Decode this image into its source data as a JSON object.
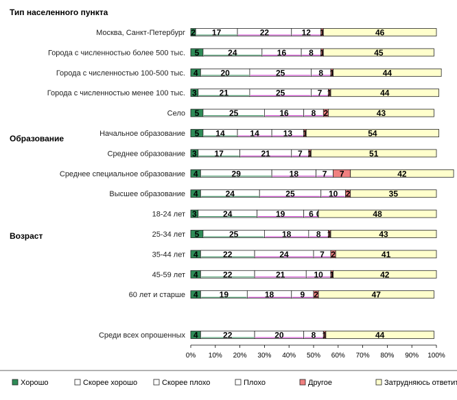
{
  "chart_data": {
    "type": "bar",
    "orientation": "horizontal",
    "stacked": "percent",
    "xlim": [
      0,
      100
    ],
    "x_ticks": [
      "0%",
      "10%",
      "20%",
      "30%",
      "40%",
      "50%",
      "60%",
      "70%",
      "80%",
      "90%",
      "100%"
    ],
    "grid": false,
    "legend_position": "bottom",
    "groups": [
      {
        "label": "Тип населенного пункта",
        "first_row": 0
      },
      {
        "label": "Образование",
        "first_row": 5
      },
      {
        "label": "Возраст",
        "first_row": 9
      }
    ],
    "categories": [
      "Москва, Санкт-Петербург",
      "Города с численностью более 500 тыс.",
      "Города с численностью 100-500 тыс.",
      "Города с численностью менее 100 тыс.",
      "Село",
      "Начальное образование",
      "Среднее образование",
      "Среднее специальное образование",
      "Высшее образование",
      "18-24 лет",
      "25-34 лет",
      "35-44 лет",
      "45-59 лет",
      "60 лет и старше",
      "",
      "Среди всех опрошенных"
    ],
    "series": [
      {
        "name": "Хорошо",
        "color": "#2e8b57",
        "values": [
          2,
          5,
          4,
          3,
          5,
          5,
          3,
          4,
          4,
          3,
          5,
          4,
          4,
          4,
          null,
          4
        ]
      },
      {
        "name": "Скорее хорошо",
        "color": "#ffffff",
        "values": [
          17,
          24,
          20,
          21,
          25,
          14,
          17,
          29,
          24,
          24,
          25,
          22,
          22,
          19,
          null,
          22
        ]
      },
      {
        "name": "Скорее плохо",
        "color": "#ffffff",
        "values": [
          22,
          16,
          25,
          25,
          16,
          14,
          21,
          18,
          25,
          19,
          18,
          24,
          21,
          18,
          null,
          20
        ]
      },
      {
        "name": "Плохо",
        "color": "#ffffff",
        "values": [
          12,
          8,
          8,
          7,
          8,
          13,
          7,
          7,
          10,
          6,
          8,
          7,
          10,
          9,
          null,
          8
        ]
      },
      {
        "name": "Другое",
        "color": "#f08080",
        "values": [
          1,
          1,
          1,
          1,
          2,
          1,
          1,
          7,
          2,
          0,
          1,
          2,
          1,
          2,
          null,
          1
        ]
      },
      {
        "name": "Затрудняюсь ответить",
        "color": "#ffffcc",
        "values": [
          46,
          45,
          44,
          44,
          43,
          54,
          51,
          42,
          35,
          48,
          43,
          41,
          42,
          47,
          null,
          44
        ]
      }
    ]
  }
}
